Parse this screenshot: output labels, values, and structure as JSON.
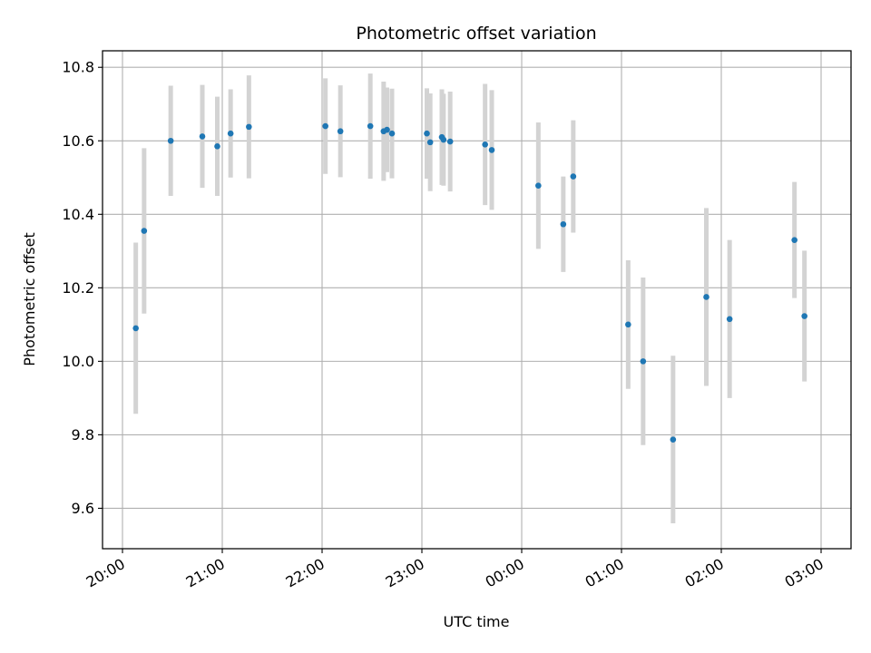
{
  "chart_data": {
    "type": "scatter",
    "title": "Photometric offset variation",
    "xlabel": "UTC time",
    "ylabel": "Photometric offset",
    "x_axis": {
      "min_hours": -0.2,
      "max_hours": 7.3,
      "ticks": [
        {
          "hours": 0,
          "label": "20:00"
        },
        {
          "hours": 1,
          "label": "21:00"
        },
        {
          "hours": 2,
          "label": "22:00"
        },
        {
          "hours": 3,
          "label": "23:00"
        },
        {
          "hours": 4,
          "label": "00:00"
        },
        {
          "hours": 5,
          "label": "01:00"
        },
        {
          "hours": 6,
          "label": "02:00"
        },
        {
          "hours": 7,
          "label": "03:00"
        }
      ]
    },
    "y_axis": {
      "ylim": [
        9.49,
        10.845
      ],
      "ticks": [
        9.6,
        9.8,
        10.0,
        10.2,
        10.4,
        10.6,
        10.8
      ],
      "tick_labels": [
        "9.6",
        "9.8",
        "10.0",
        "10.2",
        "10.4",
        "10.6",
        "10.8"
      ]
    },
    "grid": true,
    "colors": {
      "point": "#1f77b4",
      "errorbar": "#d3d3d3",
      "grid": "#b0b0b0",
      "axes": "#000000"
    },
    "series": [
      {
        "points": [
          {
            "t": "20:08",
            "y": 10.09,
            "err": 0.233
          },
          {
            "t": "20:13",
            "y": 10.355,
            "err": 0.225
          },
          {
            "t": "20:29",
            "y": 10.6,
            "err": 0.15
          },
          {
            "t": "20:48",
            "y": 10.612,
            "err": 0.14
          },
          {
            "t": "20:57",
            "y": 10.585,
            "err": 0.135
          },
          {
            "t": "21:05",
            "y": 10.62,
            "err": 0.12
          },
          {
            "t": "21:16",
            "y": 10.638,
            "err": 0.14
          },
          {
            "t": "22:02",
            "y": 10.64,
            "err": 0.13
          },
          {
            "t": "22:11",
            "y": 10.626,
            "err": 0.125
          },
          {
            "t": "22:29",
            "y": 10.64,
            "err": 0.143
          },
          {
            "t": "22:37",
            "y": 10.626,
            "err": 0.135
          },
          {
            "t": "22:39",
            "y": 10.63,
            "err": 0.115
          },
          {
            "t": "22:42",
            "y": 10.62,
            "err": 0.122
          },
          {
            "t": "23:03",
            "y": 10.62,
            "err": 0.123
          },
          {
            "t": "23:05",
            "y": 10.596,
            "err": 0.133
          },
          {
            "t": "23:12",
            "y": 10.61,
            "err": 0.13
          },
          {
            "t": "23:13",
            "y": 10.603,
            "err": 0.125
          },
          {
            "t": "23:17",
            "y": 10.598,
            "err": 0.136
          },
          {
            "t": "23:38",
            "y": 10.59,
            "err": 0.165
          },
          {
            "t": "23:42",
            "y": 10.575,
            "err": 0.163
          },
          {
            "t": "00:10",
            "y": 10.478,
            "err": 0.172
          },
          {
            "t": "00:25",
            "y": 10.373,
            "err": 0.13
          },
          {
            "t": "00:31",
            "y": 10.503,
            "err": 0.153
          },
          {
            "t": "01:04",
            "y": 10.1,
            "err": 0.175
          },
          {
            "t": "01:13",
            "y": 10.0,
            "err": 0.228
          },
          {
            "t": "01:31",
            "y": 9.787,
            "err": 0.228
          },
          {
            "t": "01:51",
            "y": 10.175,
            "err": 0.242
          },
          {
            "t": "02:05",
            "y": 10.115,
            "err": 0.215
          },
          {
            "t": "02:44",
            "y": 10.33,
            "err": 0.158
          },
          {
            "t": "02:50",
            "y": 10.123,
            "err": 0.178
          }
        ]
      }
    ]
  }
}
